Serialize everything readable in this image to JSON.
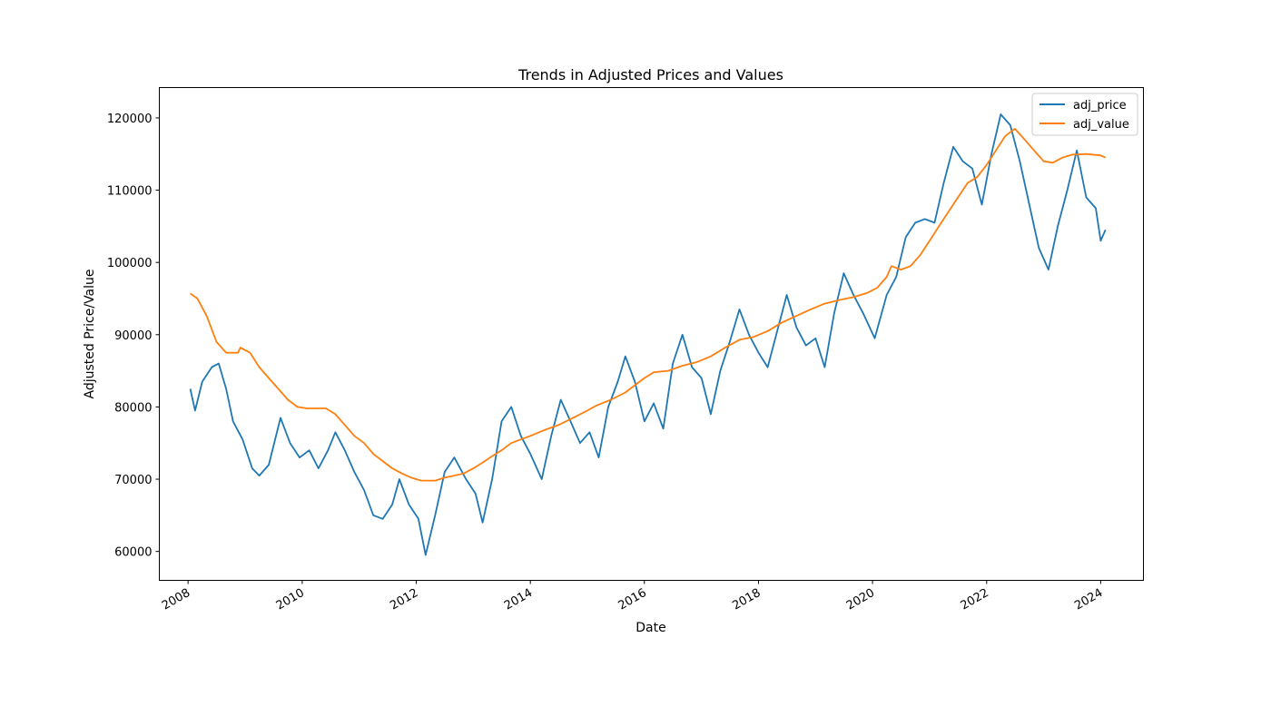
{
  "chart_data": {
    "type": "line",
    "title": "Trends in Adjusted Prices and Values",
    "xlabel": "Date",
    "ylabel": "Adjusted Price/Value",
    "xlim": [
      "2007-07-01",
      "2024-10-01"
    ],
    "ylim": [
      56000,
      124200
    ],
    "x_ticks": [
      "2008",
      "2010",
      "2012",
      "2014",
      "2016",
      "2018",
      "2020",
      "2022",
      "2024"
    ],
    "y_ticks": [
      60000,
      70000,
      80000,
      90000,
      100000,
      110000,
      120000
    ],
    "grid": false,
    "legend_position": "top-right",
    "series": [
      {
        "name": "adj_price",
        "color": "#1f77b4",
        "points": [
          [
            "2008-01-15",
            82500
          ],
          [
            "2008-02-15",
            79500
          ],
          [
            "2008-04-01",
            83500
          ],
          [
            "2008-06-01",
            85500
          ],
          [
            "2008-07-15",
            86000
          ],
          [
            "2008-09-01",
            82500
          ],
          [
            "2008-10-15",
            78000
          ],
          [
            "2008-12-15",
            75500
          ],
          [
            "2009-02-15",
            71500
          ],
          [
            "2009-04-01",
            70500
          ],
          [
            "2009-06-01",
            72000
          ],
          [
            "2009-08-15",
            78500
          ],
          [
            "2009-10-15",
            75000
          ],
          [
            "2009-12-15",
            73000
          ],
          [
            "2010-02-15",
            74000
          ],
          [
            "2010-04-15",
            71500
          ],
          [
            "2010-06-15",
            74000
          ],
          [
            "2010-08-01",
            76500
          ],
          [
            "2010-10-01",
            74000
          ],
          [
            "2010-12-01",
            71000
          ],
          [
            "2011-02-01",
            68500
          ],
          [
            "2011-04-01",
            65000
          ],
          [
            "2011-06-01",
            64500
          ],
          [
            "2011-08-01",
            66500
          ],
          [
            "2011-09-15",
            70000
          ],
          [
            "2011-11-15",
            66500
          ],
          [
            "2012-01-15",
            64500
          ],
          [
            "2012-03-01",
            59500
          ],
          [
            "2012-05-01",
            65000
          ],
          [
            "2012-07-01",
            71000
          ],
          [
            "2012-09-01",
            73000
          ],
          [
            "2012-11-15",
            70000
          ],
          [
            "2013-01-15",
            68000
          ],
          [
            "2013-03-01",
            64000
          ],
          [
            "2013-05-01",
            70000
          ],
          [
            "2013-07-01",
            78000
          ],
          [
            "2013-09-01",
            80000
          ],
          [
            "2013-11-01",
            76000
          ],
          [
            "2014-01-01",
            73500
          ],
          [
            "2014-03-15",
            70000
          ],
          [
            "2014-05-15",
            76000
          ],
          [
            "2014-07-15",
            81000
          ],
          [
            "2014-09-15",
            78000
          ],
          [
            "2014-11-15",
            75000
          ],
          [
            "2015-01-15",
            76500
          ],
          [
            "2015-03-15",
            73000
          ],
          [
            "2015-05-15",
            80000
          ],
          [
            "2015-07-15",
            83500
          ],
          [
            "2015-09-01",
            87000
          ],
          [
            "2015-11-01",
            83500
          ],
          [
            "2016-01-01",
            78000
          ],
          [
            "2016-03-01",
            80500
          ],
          [
            "2016-05-01",
            77000
          ],
          [
            "2016-07-01",
            86000
          ],
          [
            "2016-09-01",
            90000
          ],
          [
            "2016-11-01",
            85500
          ],
          [
            "2017-01-01",
            84000
          ],
          [
            "2017-03-01",
            79000
          ],
          [
            "2017-05-01",
            85000
          ],
          [
            "2017-07-01",
            89000
          ],
          [
            "2017-09-01",
            93500
          ],
          [
            "2017-11-01",
            90000
          ],
          [
            "2018-01-01",
            87500
          ],
          [
            "2018-03-01",
            85500
          ],
          [
            "2018-05-01",
            90500
          ],
          [
            "2018-07-01",
            95500
          ],
          [
            "2018-09-01",
            91000
          ],
          [
            "2018-11-01",
            88500
          ],
          [
            "2019-01-01",
            89500
          ],
          [
            "2019-03-01",
            85500
          ],
          [
            "2019-05-01",
            93000
          ],
          [
            "2019-07-01",
            98500
          ],
          [
            "2019-09-01",
            95500
          ],
          [
            "2019-11-01",
            93000
          ],
          [
            "2020-01-15",
            89500
          ],
          [
            "2020-04-01",
            95500
          ],
          [
            "2020-06-01",
            98000
          ],
          [
            "2020-08-01",
            103500
          ],
          [
            "2020-10-01",
            105500
          ],
          [
            "2020-12-01",
            106000
          ],
          [
            "2021-02-01",
            105500
          ],
          [
            "2021-04-01",
            111000
          ],
          [
            "2021-06-01",
            116000
          ],
          [
            "2021-08-01",
            114000
          ],
          [
            "2021-10-01",
            113000
          ],
          [
            "2021-12-01",
            108000
          ],
          [
            "2022-02-01",
            115000
          ],
          [
            "2022-04-01",
            120500
          ],
          [
            "2022-06-01",
            119000
          ],
          [
            "2022-08-01",
            114000
          ],
          [
            "2022-10-01",
            108000
          ],
          [
            "2022-12-01",
            102000
          ],
          [
            "2023-02-01",
            99000
          ],
          [
            "2023-04-01",
            105000
          ],
          [
            "2023-06-01",
            110000
          ],
          [
            "2023-08-01",
            115500
          ],
          [
            "2023-10-01",
            109000
          ],
          [
            "2023-12-01",
            107500
          ],
          [
            "2024-01-01",
            103000
          ],
          [
            "2024-02-01",
            104500
          ]
        ]
      },
      {
        "name": "adj_value",
        "color": "#ff7f0e",
        "points": [
          [
            "2008-01-15",
            95700
          ],
          [
            "2008-03-01",
            95000
          ],
          [
            "2008-05-01",
            92500
          ],
          [
            "2008-07-01",
            89000
          ],
          [
            "2008-09-01",
            87500
          ],
          [
            "2008-11-15",
            87500
          ],
          [
            "2008-12-01",
            88200
          ],
          [
            "2009-02-01",
            87500
          ],
          [
            "2009-04-01",
            85500
          ],
          [
            "2009-06-01",
            84000
          ],
          [
            "2009-08-01",
            82500
          ],
          [
            "2009-10-01",
            81000
          ],
          [
            "2009-12-01",
            80000
          ],
          [
            "2010-02-01",
            79800
          ],
          [
            "2010-06-01",
            79800
          ],
          [
            "2010-08-01",
            79000
          ],
          [
            "2010-10-01",
            77500
          ],
          [
            "2010-12-01",
            76000
          ],
          [
            "2011-02-01",
            75000
          ],
          [
            "2011-04-01",
            73500
          ],
          [
            "2011-06-01",
            72500
          ],
          [
            "2011-08-01",
            71500
          ],
          [
            "2011-10-01",
            70800
          ],
          [
            "2011-12-01",
            70200
          ],
          [
            "2012-02-01",
            69800
          ],
          [
            "2012-05-01",
            69800
          ],
          [
            "2012-07-01",
            70200
          ],
          [
            "2012-09-01",
            70500
          ],
          [
            "2012-11-01",
            70800
          ],
          [
            "2013-01-01",
            71500
          ],
          [
            "2013-03-01",
            72300
          ],
          [
            "2013-05-01",
            73200
          ],
          [
            "2013-07-01",
            74000
          ],
          [
            "2013-09-01",
            75000
          ],
          [
            "2013-11-01",
            75500
          ],
          [
            "2014-01-01",
            76000
          ],
          [
            "2014-04-01",
            76800
          ],
          [
            "2014-07-01",
            77500
          ],
          [
            "2014-10-01",
            78500
          ],
          [
            "2015-01-01",
            79500
          ],
          [
            "2015-03-01",
            80200
          ],
          [
            "2015-06-01",
            81000
          ],
          [
            "2015-09-01",
            82000
          ],
          [
            "2015-11-01",
            83000
          ],
          [
            "2016-01-01",
            84000
          ],
          [
            "2016-03-01",
            84800
          ],
          [
            "2016-06-01",
            85000
          ],
          [
            "2016-09-01",
            85700
          ],
          [
            "2016-12-01",
            86200
          ],
          [
            "2017-03-01",
            87000
          ],
          [
            "2017-06-01",
            88200
          ],
          [
            "2017-09-01",
            89300
          ],
          [
            "2017-12-01",
            89700
          ],
          [
            "2018-03-01",
            90500
          ],
          [
            "2018-06-01",
            91700
          ],
          [
            "2018-09-01",
            92600
          ],
          [
            "2018-12-01",
            93500
          ],
          [
            "2019-03-01",
            94300
          ],
          [
            "2019-06-01",
            94800
          ],
          [
            "2019-09-01",
            95200
          ],
          [
            "2019-12-01",
            95800
          ],
          [
            "2020-02-01",
            96500
          ],
          [
            "2020-04-01",
            98000
          ],
          [
            "2020-05-01",
            99500
          ],
          [
            "2020-07-01",
            99000
          ],
          [
            "2020-09-01",
            99500
          ],
          [
            "2020-11-01",
            101000
          ],
          [
            "2021-01-01",
            103000
          ],
          [
            "2021-03-01",
            105000
          ],
          [
            "2021-05-01",
            107000
          ],
          [
            "2021-07-01",
            109000
          ],
          [
            "2021-09-01",
            111000
          ],
          [
            "2021-11-01",
            111800
          ],
          [
            "2022-01-01",
            113500
          ],
          [
            "2022-03-01",
            115500
          ],
          [
            "2022-05-01",
            117500
          ],
          [
            "2022-07-01",
            118500
          ],
          [
            "2022-09-01",
            117000
          ],
          [
            "2022-11-01",
            115500
          ],
          [
            "2023-01-01",
            114000
          ],
          [
            "2023-03-01",
            113800
          ],
          [
            "2023-05-01",
            114500
          ],
          [
            "2023-07-01",
            114900
          ],
          [
            "2023-10-01",
            115000
          ],
          [
            "2024-01-01",
            114800
          ],
          [
            "2024-02-01",
            114500
          ]
        ]
      }
    ]
  }
}
